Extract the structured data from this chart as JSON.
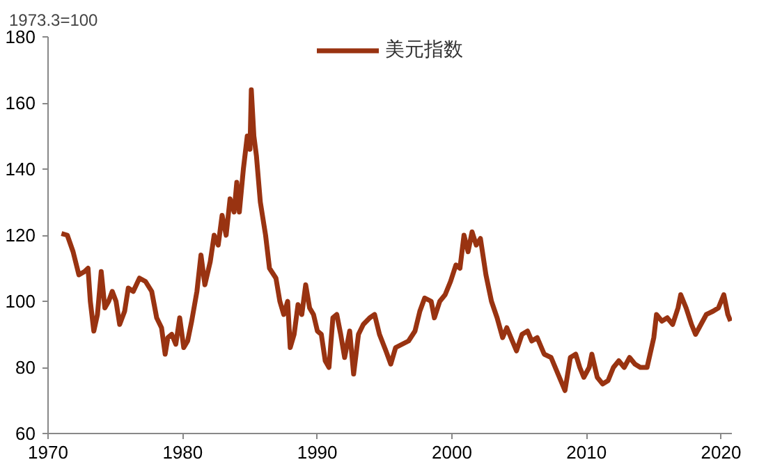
{
  "chart_data": {
    "type": "line",
    "ylabel": "1973.3=100",
    "x": [
      1971.0,
      1971.43,
      1971.86,
      1972.29,
      1972.71,
      1972.97,
      1973.14,
      1973.4,
      1973.67,
      1973.95,
      1974.22,
      1974.5,
      1974.77,
      1975.05,
      1975.32,
      1975.69,
      1975.96,
      1976.33,
      1976.79,
      1977.24,
      1977.7,
      1978.07,
      1978.43,
      1978.7,
      1978.9,
      1979.19,
      1979.49,
      1979.78,
      1980.08,
      1980.37,
      1980.67,
      1981.06,
      1981.36,
      1981.65,
      1982.05,
      1982.34,
      1982.64,
      1982.93,
      1983.23,
      1983.52,
      1983.82,
      1984.02,
      1984.21,
      1984.51,
      1984.8,
      1985.0,
      1985.1,
      1985.29,
      1985.48,
      1985.77,
      1986.16,
      1986.45,
      1986.93,
      1987.22,
      1987.51,
      1987.8,
      1987.99,
      1988.28,
      1988.57,
      1988.85,
      1989.14,
      1989.43,
      1989.72,
      1990.01,
      1990.3,
      1990.59,
      1990.87,
      1991.16,
      1991.45,
      1991.74,
      1992.03,
      1992.41,
      1992.7,
      1993.06,
      1993.42,
      1993.9,
      1994.26,
      1994.62,
      1995.1,
      1995.46,
      1995.82,
      1996.3,
      1996.78,
      1997.26,
      1997.62,
      1997.98,
      1998.46,
      1998.7,
      1999.1,
      1999.5,
      1999.9,
      2000.3,
      2000.6,
      2000.9,
      2001.2,
      2001.5,
      2001.81,
      2002.12,
      2002.53,
      2002.94,
      2003.36,
      2003.77,
      2004.08,
      2004.49,
      2004.8,
      2005.21,
      2005.62,
      2005.93,
      2006.34,
      2006.86,
      2007.37,
      2007.78,
      2008.09,
      2008.4,
      2008.8,
      2009.2,
      2009.5,
      2009.8,
      2010.2,
      2010.4,
      2010.8,
      2011.2,
      2011.6,
      2012.0,
      2012.4,
      2012.8,
      2013.2,
      2013.6,
      2014.0,
      2014.5,
      2015.0,
      2015.2,
      2015.6,
      2016.0,
      2016.4,
      2016.8,
      2017.0,
      2017.4,
      2017.8,
      2018.1,
      2018.5,
      2018.9,
      2019.4,
      2019.8,
      2020.2,
      2020.5,
      2020.7
    ],
    "series": [
      {
        "name": "美元指数",
        "color": "#993311",
        "values": [
          120.5,
          120,
          115,
          108,
          109,
          110,
          100,
          91,
          96,
          109,
          98,
          100,
          103,
          100,
          93,
          97,
          104,
          103,
          107,
          106,
          103,
          95,
          92,
          84,
          89,
          90,
          87,
          95,
          86,
          88,
          94,
          103,
          114,
          105,
          112,
          120,
          117,
          126,
          120,
          131,
          127,
          136,
          127,
          140,
          150,
          146,
          164,
          150,
          144,
          130,
          120,
          110,
          107,
          100,
          96,
          100,
          86,
          90,
          99,
          96,
          105,
          98,
          96,
          91,
          90,
          82,
          80,
          95,
          96,
          90,
          83,
          91,
          78,
          90,
          93,
          95,
          96,
          90,
          85,
          81,
          86,
          87,
          88,
          91,
          97,
          101,
          100,
          95,
          100,
          102,
          106,
          111,
          110,
          120,
          115,
          121,
          117,
          119,
          108,
          100,
          95,
          89,
          92,
          88,
          85,
          90,
          91,
          88,
          89,
          84,
          83,
          79,
          76,
          73,
          83,
          84,
          80,
          77,
          80,
          84,
          77,
          75,
          76,
          80,
          82,
          80,
          83,
          81,
          80,
          80,
          89,
          96,
          94,
          95,
          93,
          98,
          102,
          98,
          93,
          90,
          93,
          96,
          97,
          98,
          102,
          96,
          94
        ]
      }
    ],
    "xlim": [
      1970,
      2020.8
    ],
    "ylim": [
      60,
      180
    ],
    "xticks": [
      1970,
      1980,
      1990,
      2000,
      2010,
      2020
    ],
    "yticks": [
      60,
      80,
      100,
      120,
      140,
      160,
      180
    ],
    "legend": "top",
    "grid": false
  }
}
